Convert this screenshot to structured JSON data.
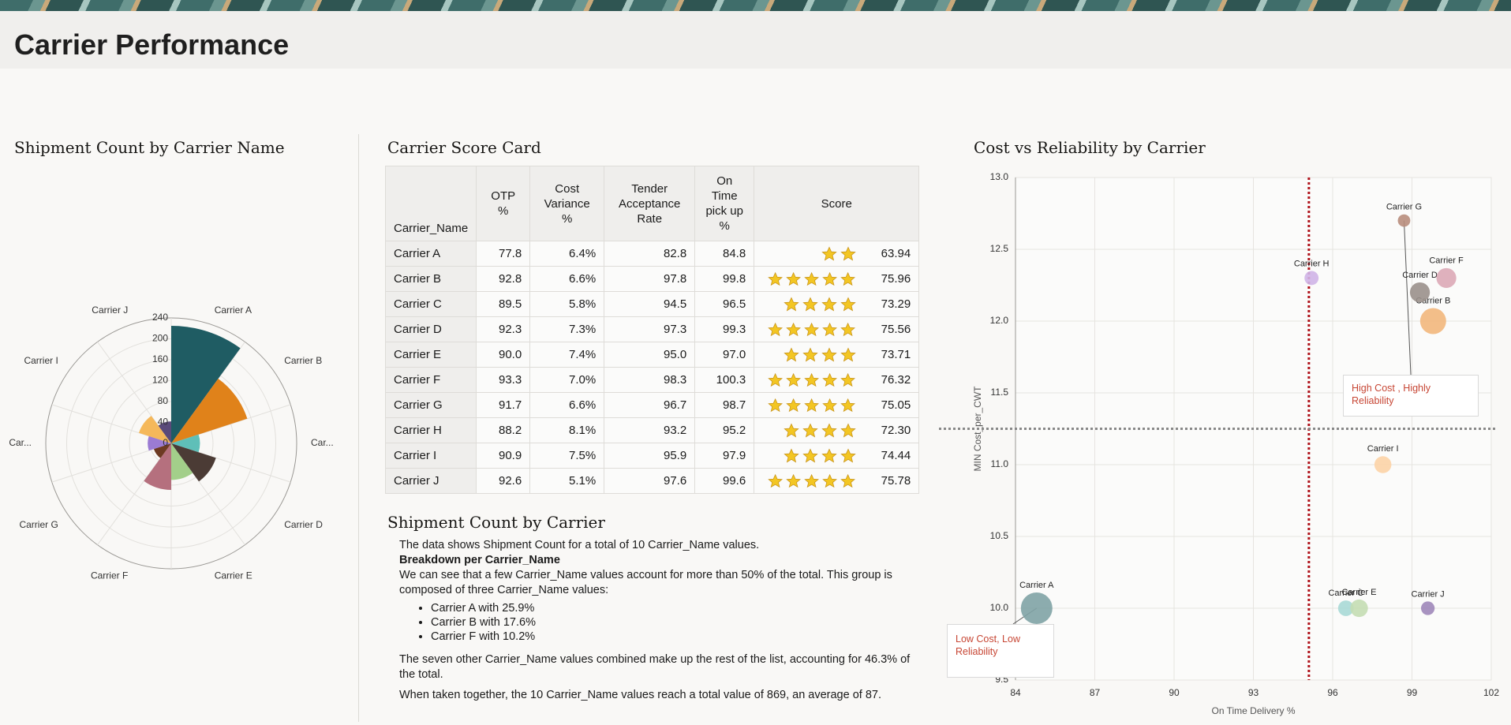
{
  "page_title": "Carrier Performance",
  "chart_data": [
    {
      "type": "polar",
      "title": "Shipment Count by Carrier Name",
      "categories": [
        "Carrier A",
        "Carrier B",
        "Car...",
        "Carrier D",
        "Carrier E",
        "Carrier F",
        "Carrier G",
        "Car...",
        "Carrier I",
        "Carrier J"
      ],
      "values": [
        225,
        153,
        55,
        90,
        70,
        89,
        35,
        45,
        65,
        42
      ],
      "colors": [
        "#1f5c63",
        "#e0821a",
        "#5fbfb8",
        "#4b3b35",
        "#a3cf8a",
        "#b5707e",
        "#6d3a22",
        "#9b7bd3",
        "#f5b85a",
        "#5a4a7a"
      ],
      "ylim": [
        0,
        240
      ],
      "yticks": [
        0,
        40,
        80,
        120,
        160,
        200,
        240
      ],
      "grid": true
    },
    {
      "type": "scatter",
      "title": "Cost vs Reliability by Carrier",
      "x_label": "On Time Delivery %",
      "y_label": "MIN Cost_per_CWT",
      "labels": [
        "Carrier A",
        "Carrier B",
        "Carrier C",
        "Carrier D",
        "Carrier E",
        "Carrier F",
        "Carrier G",
        "Carrier H",
        "Carrier I",
        "Carrier J"
      ],
      "x": [
        84.8,
        99.8,
        96.5,
        99.3,
        97.0,
        100.3,
        98.7,
        95.2,
        97.9,
        99.6
      ],
      "values": [
        10.0,
        12.0,
        10.0,
        12.2,
        10.0,
        12.3,
        12.7,
        12.3,
        11.0,
        10.0
      ],
      "sizes": [
        225,
        153,
        55,
        90,
        70,
        89,
        35,
        45,
        65,
        42
      ],
      "colors": [
        "#7fa3a5",
        "#f2b77c",
        "#a9d9d6",
        "#9a908b",
        "#c4ddb2",
        "#dba8b6",
        "#b88d7c",
        "#cfb4e7",
        "#fcd3a6",
        "#9e87b9"
      ],
      "xlim": [
        84,
        102
      ],
      "xticks": [
        84,
        87,
        90,
        93,
        96,
        99,
        102
      ],
      "ylim": [
        9.5,
        13
      ],
      "yticks": [
        9.5,
        {
          "value": 10,
          "label": "10.0"
        },
        10.5,
        {
          "value": 11,
          "label": "11.0"
        },
        11.5,
        {
          "value": 12,
          "label": "12.0"
        },
        12.5,
        {
          "value": 13,
          "label": "13.0"
        }
      ],
      "grid": true,
      "x_reference": 95.1,
      "x_reference_color": "#b0141c",
      "y_reference": 11.25,
      "y_reference_color": "#888888",
      "annotations": [
        "High Cost , Highly Reliability",
        "Low Cost, Low Reliability"
      ]
    }
  ],
  "score_card": {
    "title": "Carrier Score Card",
    "columns": [
      "Carrier_Name",
      "OTP %",
      "Cost Variance %",
      "Tender Acceptance Rate",
      "On Time pick up %",
      "Score"
    ],
    "rows": [
      [
        "Carrier A",
        "77.8",
        "6.4%",
        "82.8",
        "84.8",
        "63.94"
      ],
      [
        "Carrier B",
        "92.8",
        "6.6%",
        "97.8",
        "99.8",
        "75.96"
      ],
      [
        "Carrier C",
        "89.5",
        "5.8%",
        "94.5",
        "96.5",
        "73.29"
      ],
      [
        "Carrier D",
        "92.3",
        "7.3%",
        "97.3",
        "99.3",
        "75.56"
      ],
      [
        "Carrier E",
        "90.0",
        "7.4%",
        "95.0",
        "97.0",
        "73.71"
      ],
      [
        "Carrier F",
        "93.3",
        "7.0%",
        "98.3",
        "100.3",
        "76.32"
      ],
      [
        "Carrier G",
        "91.7",
        "6.6%",
        "96.7",
        "98.7",
        "75.05"
      ],
      [
        "Carrier H",
        "88.2",
        "8.1%",
        "93.2",
        "95.2",
        "72.30"
      ],
      [
        "Carrier I",
        "90.9",
        "7.5%",
        "95.9",
        "97.9",
        "74.44"
      ],
      [
        "Carrier J",
        "92.6",
        "5.1%",
        "97.6",
        "99.6",
        "75.78"
      ]
    ],
    "stars": [
      2,
      5,
      4,
      5,
      4,
      5,
      5,
      4,
      4,
      5
    ]
  },
  "summary": {
    "title": "Shipment Count by Carrier",
    "intro": "The data shows Shipment Count for a total of 10 Carrier_Name values.",
    "heading": "Breakdown per Carrier_Name",
    "paragraph": "We can see that a few Carrier_Name values account for more than 50% of the total. This group is composed of three Carrier_Name values:",
    "items": [
      "Carrier A with 25.9%",
      "Carrier B with 17.6%",
      "Carrier F with 10.2%"
    ],
    "rest": "The seven other Carrier_Name values combined make up the rest of the list, accounting for 46.3% of the total.",
    "total": "When taken together, the 10 Carrier_Name values reach a total value of 869, an average of 87."
  }
}
